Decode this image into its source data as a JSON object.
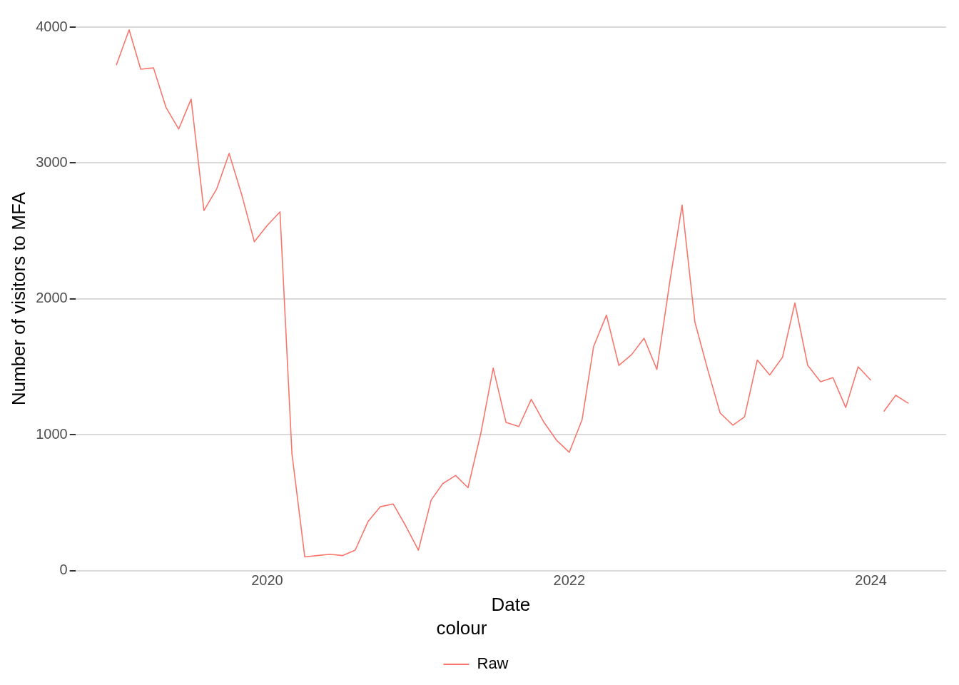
{
  "chart_data": {
    "type": "line",
    "xlabel": "Date",
    "ylabel": "Number of visitors to MFA",
    "legend_title": "colour",
    "legend": "bottom",
    "grid": "y",
    "xlim": [
      "2018-09-24",
      "2024-07-01"
    ],
    "xticks": [
      "2020",
      "2022",
      "2024"
    ],
    "ylim": [
      0,
      4000
    ],
    "yticks": [
      0,
      1000,
      2000,
      3000,
      4000
    ],
    "x": [
      "2019-01",
      "2019-02",
      "2019-03",
      "2019-04",
      "2019-05",
      "2019-06",
      "2019-07",
      "2019-08",
      "2019-09",
      "2019-10",
      "2019-11",
      "2019-12",
      "2020-01",
      "2020-02",
      "2020-03",
      "2020-04",
      "2020-05",
      "2020-06",
      "2020-07",
      "2020-08",
      "2020-09",
      "2020-10",
      "2020-11",
      "2020-12",
      "2021-01",
      "2021-02",
      "2021-03",
      "2021-04",
      "2021-05",
      "2021-06",
      "2021-07",
      "2021-08",
      "2021-09",
      "2021-10",
      "2021-11",
      "2021-12",
      "2022-01",
      "2022-02",
      "2022-03",
      "2022-04",
      "2022-05",
      "2022-06",
      "2022-07",
      "2022-08",
      "2022-09",
      "2022-10",
      "2022-11",
      "2022-12",
      "2023-01",
      "2023-02",
      "2023-03",
      "2023-04",
      "2023-05",
      "2023-06",
      "2023-07",
      "2023-08",
      "2023-09",
      "2023-10",
      "2023-11",
      "2023-12",
      "2024-01",
      "2024-01-16",
      "2024-02",
      "2024-03",
      "2024-04"
    ],
    "series": [
      {
        "name": "Raw",
        "color": "#f8766d",
        "values": [
          3720,
          3980,
          3690,
          3700,
          3410,
          3250,
          3470,
          2650,
          2810,
          3070,
          2760,
          2420,
          2540,
          2640,
          860,
          100,
          110,
          120,
          110,
          150,
          360,
          470,
          490,
          330,
          150,
          520,
          640,
          700,
          610,
          1010,
          1490,
          1090,
          1060,
          1260,
          1090,
          960,
          870,
          1110,
          1650,
          1880,
          1510,
          1590,
          1710,
          1480,
          2120,
          2690,
          1830,
          1490,
          1160,
          1070,
          1130,
          1550,
          1440,
          1570,
          1970,
          1510,
          1390,
          1420,
          1200,
          1500,
          1400,
          null,
          1170,
          1290,
          1230
        ]
      }
    ]
  }
}
